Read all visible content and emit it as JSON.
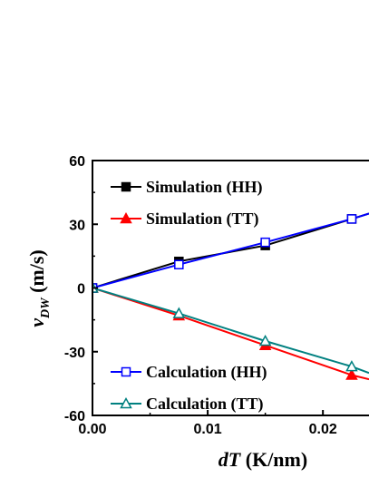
{
  "chart_data": {
    "type": "line",
    "xlim": [
      0.0,
      0.024
    ],
    "ylim": [
      -60,
      60
    ],
    "x_ticks": [
      0.0,
      0.01,
      0.02
    ],
    "x_tick_labels": [
      "0.00",
      "0.01",
      "0.02"
    ],
    "y_ticks": [
      -60,
      -30,
      0,
      30,
      60
    ],
    "y_tick_labels": [
      "-60",
      "-30",
      "0",
      "30",
      "60"
    ],
    "xlabel": {
      "italic": "dT",
      "rest": " (K/nm)"
    },
    "ylabel": {
      "italic": "v",
      "subscript": "DW",
      "rest": " (m/s)"
    },
    "grid": false,
    "legend_position": "inside, left",
    "series": [
      {
        "name": "Simulation (HH)",
        "color": "#000000",
        "marker": "filled-square",
        "x": [
          0.0,
          0.0075,
          0.015,
          0.0225,
          0.024
        ],
        "y": [
          0,
          12.5,
          20,
          32.5,
          35
        ]
      },
      {
        "name": "Simulation (TT)",
        "color": "#ff0000",
        "marker": "filled-triangle",
        "x": [
          0.0,
          0.0075,
          0.015,
          0.0225,
          0.024
        ],
        "y": [
          0,
          -13,
          -27,
          -41,
          -43
        ]
      },
      {
        "name": "Calculation (HH)",
        "color": "#0000ff",
        "marker": "open-square",
        "x": [
          0.0,
          0.0075,
          0.015,
          0.0225,
          0.024
        ],
        "y": [
          0,
          11,
          21.5,
          32.5,
          35
        ]
      },
      {
        "name": "Calculation (TT)",
        "color": "#008080",
        "marker": "open-triangle",
        "x": [
          0.0,
          0.0075,
          0.015,
          0.0225,
          0.024
        ],
        "y": [
          0,
          -12,
          -25,
          -37,
          -40
        ]
      }
    ]
  }
}
